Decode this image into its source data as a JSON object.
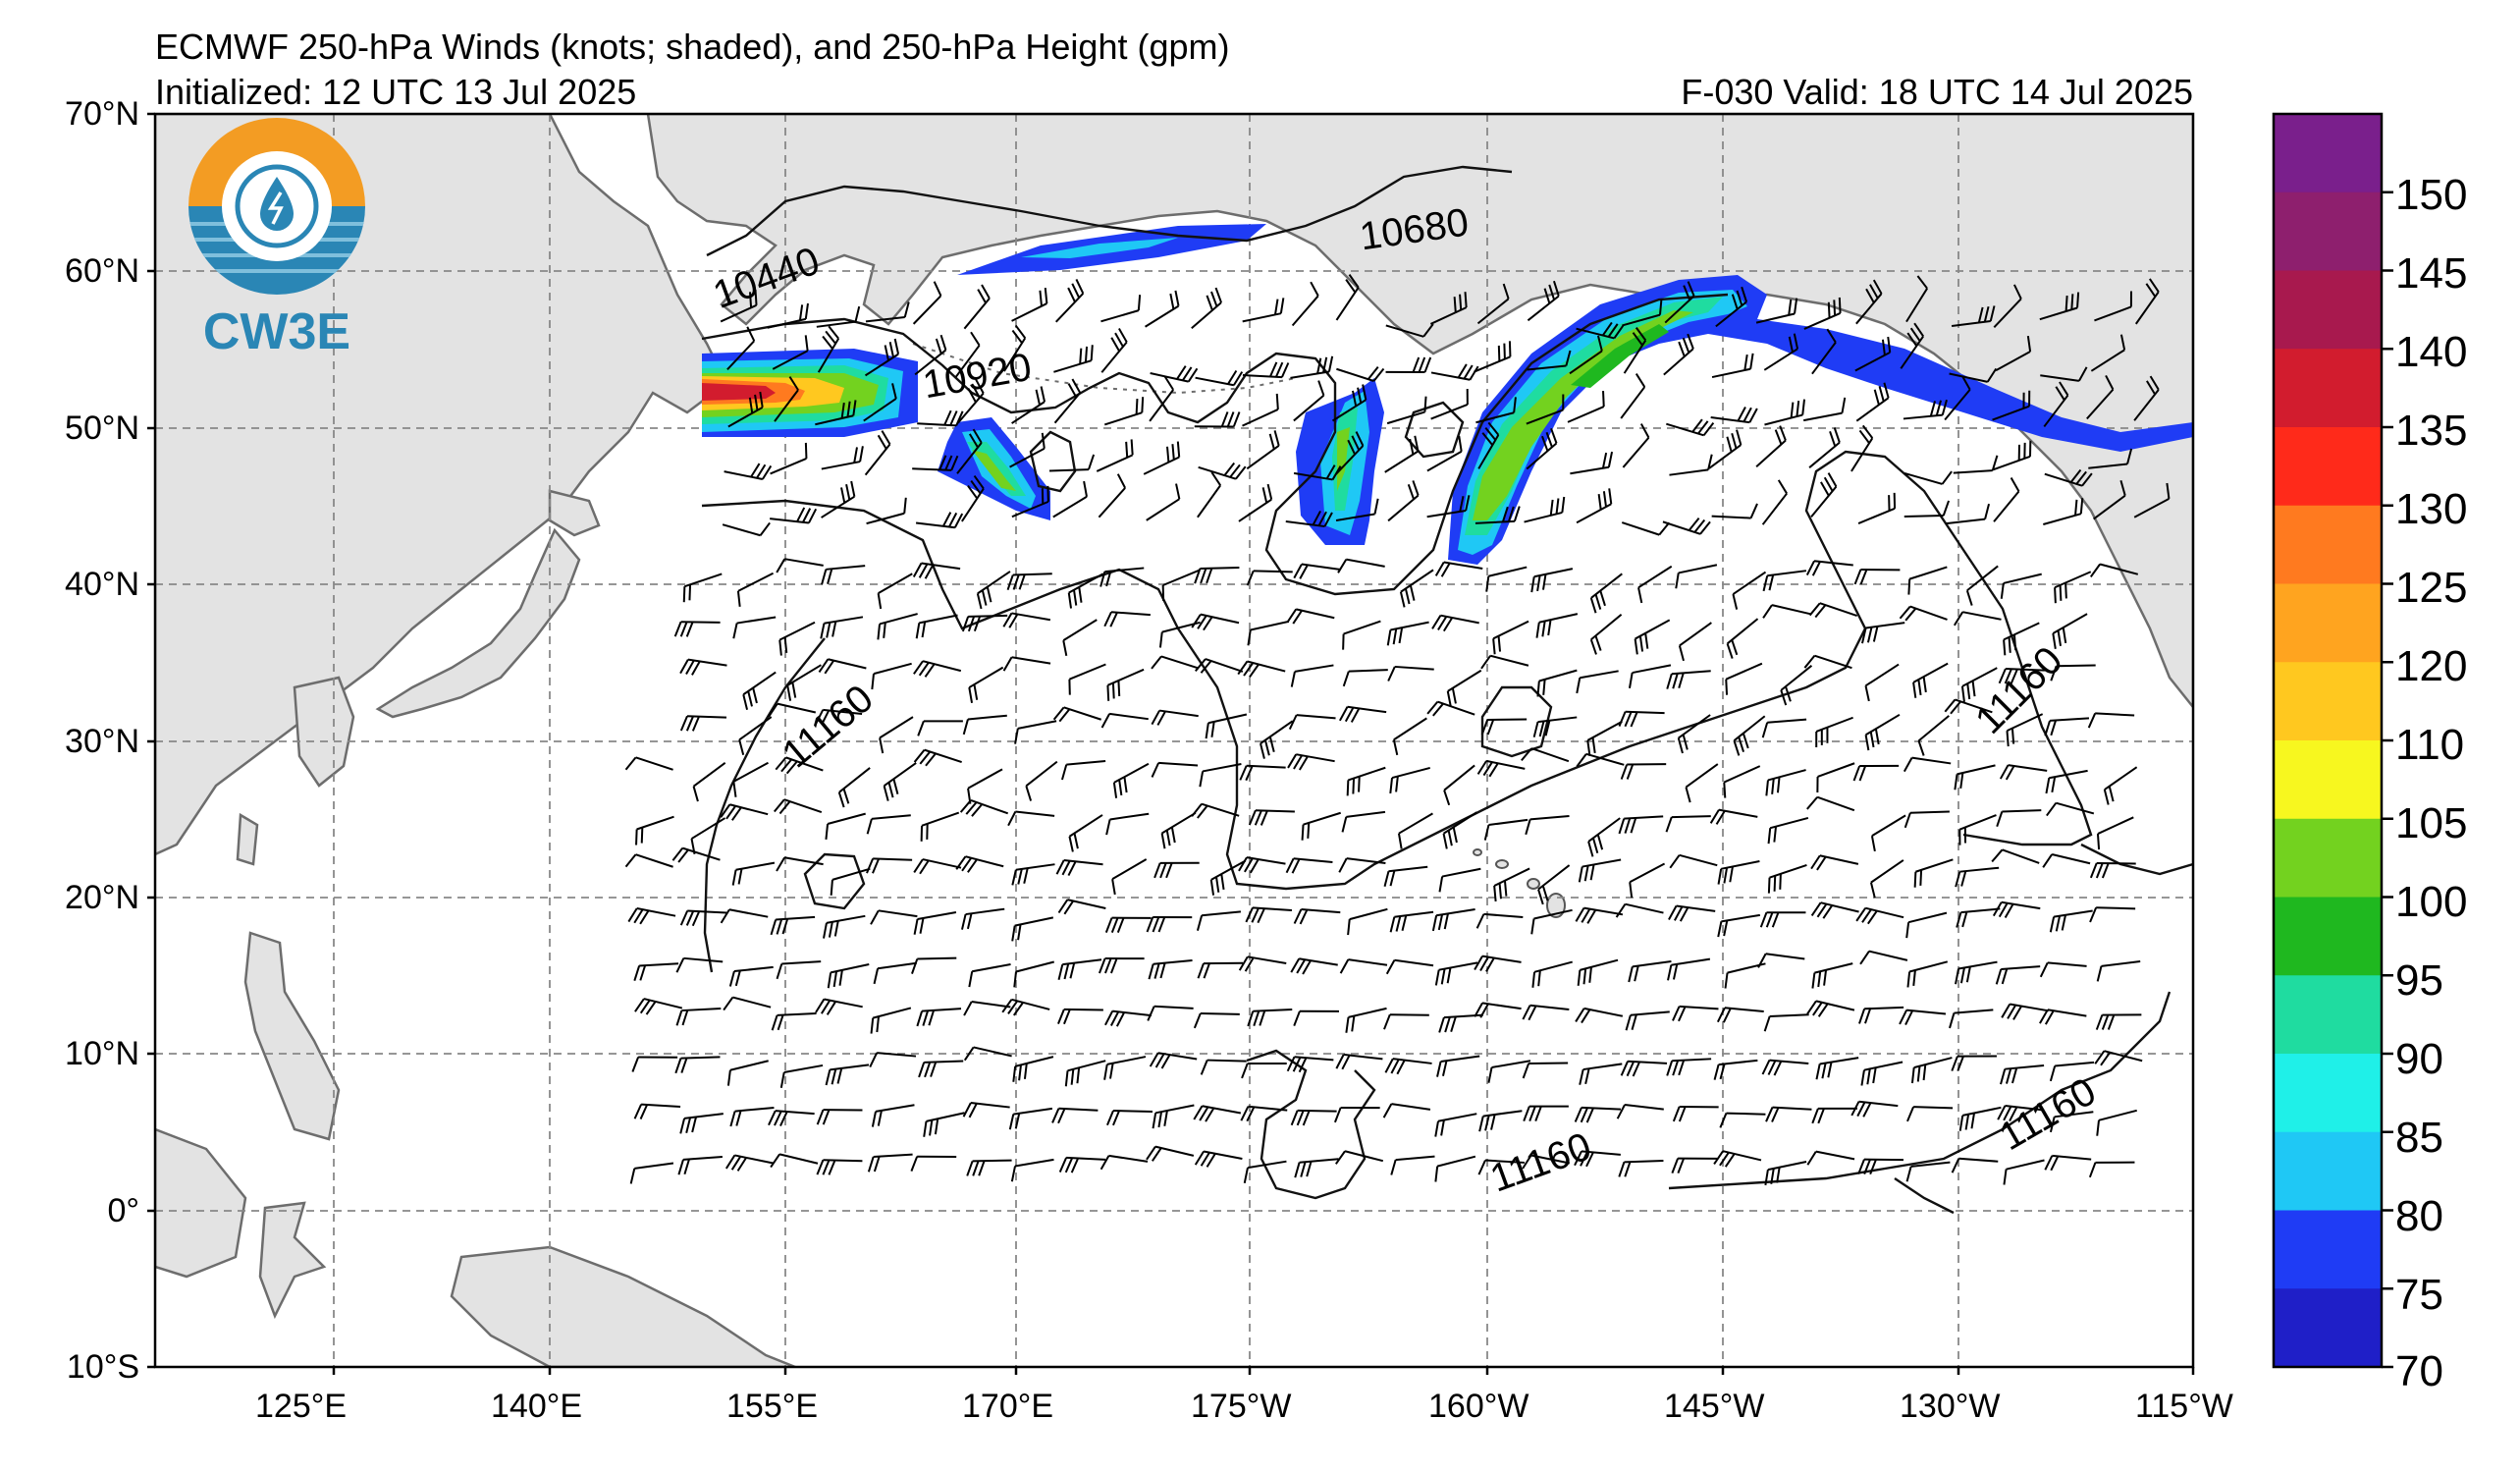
{
  "header": {
    "title": "ECMWF 250-hPa Winds (knots; shaded), and 250-hPa Height (gpm)",
    "initialized": "Initialized: 12 UTC 13 Jul 2025",
    "valid": "F-030  Valid: 18 UTC 14 Jul 2025"
  },
  "logo": {
    "text": "CW3E",
    "colors": [
      "#f39c23",
      "#2a86b5"
    ]
  },
  "map": {
    "lat_labels": [
      "70°N",
      "60°N",
      "50°N",
      "40°N",
      "30°N",
      "20°N",
      "10°N",
      "0°",
      "10°S"
    ],
    "lon_labels": [
      "125°E",
      "140°E",
      "155°E",
      "170°E",
      "175°W",
      "160°W",
      "145°W",
      "130°W",
      "115°W"
    ],
    "height_contours": [
      {
        "value": "10440"
      },
      {
        "value": "10680"
      },
      {
        "value": "10920"
      },
      {
        "value": "11160"
      },
      {
        "value": "11160"
      },
      {
        "value": "11160"
      },
      {
        "value": "11160"
      }
    ],
    "land_color": "#e3e3e3",
    "coast_color": "#666666"
  },
  "colorbar": {
    "labels": [
      "150",
      "145",
      "140",
      "135",
      "130",
      "125",
      "120",
      "110",
      "105",
      "100",
      "95",
      "90",
      "85",
      "80",
      "75",
      "70"
    ],
    "colors": [
      "#7a1f8c",
      "#8e1f6e",
      "#a8194e",
      "#d21c2e",
      "#ff2a1a",
      "#ff7a1f",
      "#ffa41f",
      "#ffc81f",
      "#f7f71f",
      "#73d21f",
      "#1fb81f",
      "#1fdca0",
      "#1ff0e8",
      "#1fc8f5",
      "#1f3cf5",
      "#1f1fc8"
    ]
  }
}
